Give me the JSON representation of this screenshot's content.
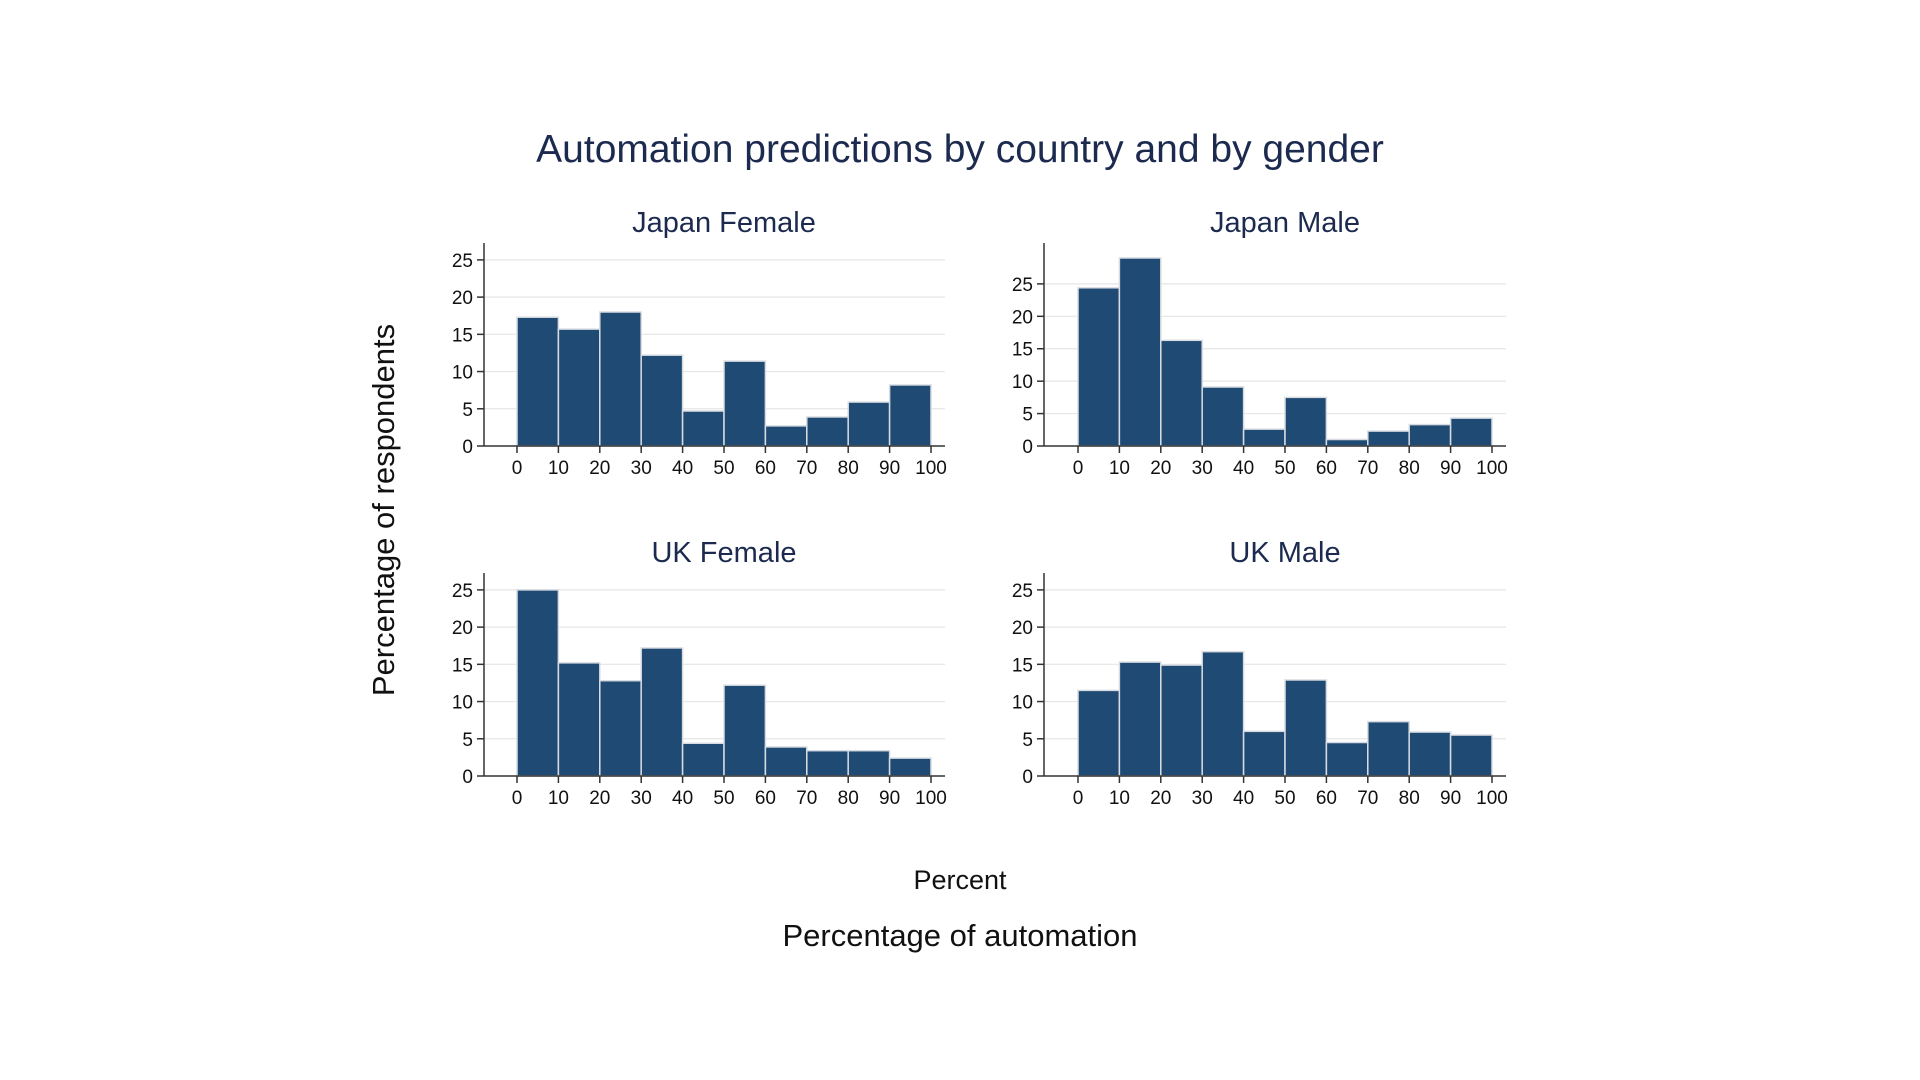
{
  "title": "Automation predictions by country and by gender",
  "ylabel": "Percentage of respondents",
  "xlabel_inner": "Percent",
  "xlabel_outer": "Percentage of automation",
  "colors": {
    "bar": "#1f4a73",
    "bar_edge": "#d8dce2",
    "title": "#1b2a4e",
    "grid": "#e6e6e6",
    "axis": "#333333"
  },
  "chart_data": [
    {
      "type": "bar",
      "panel": "Japan Female",
      "bin_edges": [
        0,
        10,
        20,
        30,
        40,
        50,
        60,
        70,
        80,
        90,
        100
      ],
      "values": [
        17.3,
        15.7,
        18.0,
        12.2,
        4.7,
        11.4,
        2.7,
        3.9,
        5.9,
        8.2
      ],
      "xticks": [
        "0",
        "10",
        "20",
        "30",
        "40",
        "50",
        "60",
        "70",
        "80",
        "90",
        "100"
      ],
      "yticks": [
        0,
        5,
        10,
        15,
        20,
        25
      ],
      "ylim": [
        0,
        27
      ]
    },
    {
      "type": "bar",
      "panel": "Japan Male",
      "bin_edges": [
        0,
        10,
        20,
        30,
        40,
        50,
        60,
        70,
        80,
        90,
        100
      ],
      "values": [
        24.4,
        29.0,
        16.3,
        9.1,
        2.6,
        7.5,
        1.0,
        2.3,
        3.3,
        4.3
      ],
      "xticks": [
        "0",
        "10",
        "20",
        "30",
        "40",
        "50",
        "60",
        "70",
        "80",
        "90",
        "100"
      ],
      "yticks": [
        0,
        5,
        10,
        15,
        20,
        25
      ],
      "ylim": [
        0,
        31
      ]
    },
    {
      "type": "bar",
      "panel": "UK Female",
      "bin_edges": [
        0,
        10,
        20,
        30,
        40,
        50,
        60,
        70,
        80,
        90,
        100
      ],
      "values": [
        25.0,
        15.2,
        12.8,
        17.2,
        4.4,
        12.2,
        3.9,
        3.4,
        3.4,
        2.4
      ],
      "xticks": [
        "0",
        "10",
        "20",
        "30",
        "40",
        "50",
        "60",
        "70",
        "80",
        "90",
        "100"
      ],
      "yticks": [
        0,
        5,
        10,
        15,
        20,
        25
      ],
      "ylim": [
        0,
        27
      ]
    },
    {
      "type": "bar",
      "panel": "UK Male",
      "bin_edges": [
        0,
        10,
        20,
        30,
        40,
        50,
        60,
        70,
        80,
        90,
        100
      ],
      "values": [
        11.5,
        15.3,
        14.9,
        16.7,
        6.0,
        12.9,
        4.5,
        7.3,
        5.9,
        5.5
      ],
      "xticks": [
        "0",
        "10",
        "20",
        "30",
        "40",
        "50",
        "60",
        "70",
        "80",
        "90",
        "100"
      ],
      "yticks": [
        0,
        5,
        10,
        15,
        20,
        25
      ],
      "ylim": [
        0,
        27
      ]
    }
  ]
}
